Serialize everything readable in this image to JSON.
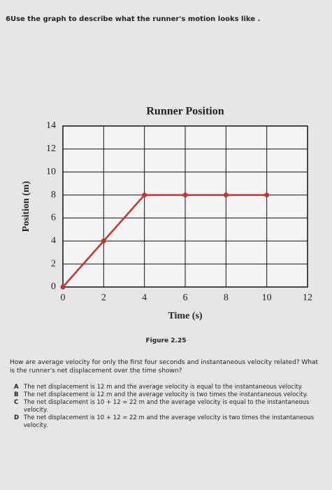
{
  "header": {
    "title": "6Use the graph to describe what the runner's motion looks like ."
  },
  "chart_data": {
    "type": "line",
    "title": "Runner Position",
    "x_label": "Time (s)",
    "y_label": "Position (m)",
    "x": [
      0,
      2,
      4,
      6,
      8,
      10
    ],
    "series": [
      {
        "name": "Runner Position",
        "color": "#c8322d",
        "values": [
          0,
          4,
          8,
          8,
          8,
          8
        ]
      }
    ],
    "xlim": [
      0,
      12
    ],
    "xticks": [
      0,
      2,
      4,
      6,
      8,
      10,
      12
    ],
    "ylim": [
      0,
      14
    ],
    "yticks": [
      0,
      2,
      4,
      6,
      8,
      10,
      12,
      14
    ],
    "grid": true
  },
  "caption": "Figure 2.25",
  "question": "How are average velocity for only the first four seconds and instantaneous velocity related? What is the runner's net displacement over the time shown?",
  "options": [
    {
      "letter": "A",
      "text": "The net displacement is 12 m and the average velocity is equal to the instantaneous velocity."
    },
    {
      "letter": "B",
      "text": "The net displacement is 12 m and the average velocity is two times the instantaneous velocity."
    },
    {
      "letter": "C",
      "text": "The net displacement is 10 + 12 = 22 m and the average velocity is equal to the instantaneous velocity."
    },
    {
      "letter": "D",
      "text": "The net displacement is 10 + 12 = 22 m and the average velocity is two times the instantaneous velocity."
    }
  ]
}
